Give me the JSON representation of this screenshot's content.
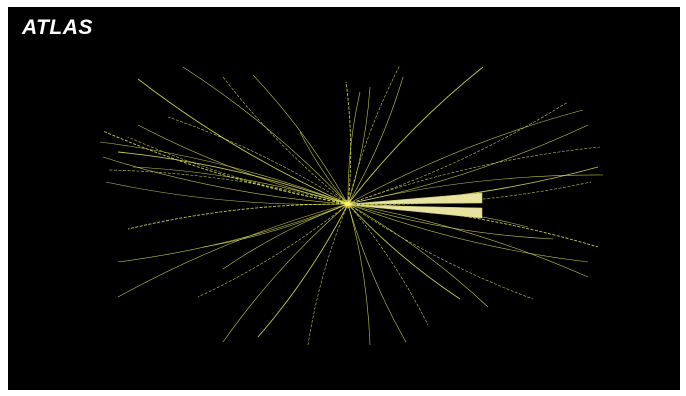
{
  "experiment": {
    "logo": "ATLAS"
  },
  "colors": {
    "background": "#000000",
    "frame": "#ffffff",
    "track": "#e6e85a",
    "jet": "#e8e4a0",
    "vertex": "#fff36a"
  },
  "event_display": {
    "track_count": 48,
    "jet_count": 2
  }
}
